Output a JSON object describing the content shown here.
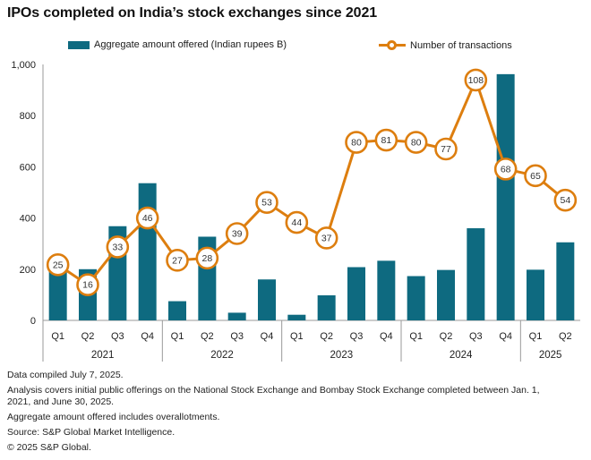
{
  "title": "IPOs completed on India’s stock exchanges since 2021",
  "legend": {
    "bar_label": "Aggregate amount offered (Indian rupees B)",
    "line_label": "Number of transactions"
  },
  "colors": {
    "bar": "#0e6a80",
    "line": "#dd7e0f",
    "axis": "#9a9a9a",
    "text": "#222222",
    "marker_fill": "#ffffff",
    "marker_text": "#333333"
  },
  "chart_data": {
    "type": "bar",
    "subtype": "bar+line combo, dual axis (secondary axis hidden)",
    "grid": false,
    "legend_position": "top",
    "groups": [
      {
        "year": "2021",
        "quarters": [
          "Q1",
          "Q2",
          "Q3",
          "Q4"
        ]
      },
      {
        "year": "2022",
        "quarters": [
          "Q1",
          "Q2",
          "Q3",
          "Q4"
        ]
      },
      {
        "year": "2023",
        "quarters": [
          "Q1",
          "Q2",
          "Q3",
          "Q4"
        ]
      },
      {
        "year": "2024",
        "quarters": [
          "Q1",
          "Q2",
          "Q3",
          "Q4"
        ]
      },
      {
        "year": "2025",
        "quarters": [
          "Q1",
          "Q2"
        ]
      }
    ],
    "series": [
      {
        "name": "Aggregate amount offered (Indian rupees B)",
        "type": "bar",
        "values": [
          193,
          200,
          368,
          536,
          75,
          327,
          30,
          160,
          22,
          98,
          208,
          233,
          173,
          197,
          360,
          962,
          198,
          305
        ]
      },
      {
        "name": "Number of transactions",
        "type": "line",
        "values": [
          25,
          16,
          33,
          46,
          27,
          28,
          39,
          53,
          44,
          37,
          80,
          81,
          80,
          77,
          108,
          68,
          65,
          54
        ]
      }
    ],
    "y_axis": {
      "ticks": [
        "1,000",
        "800",
        "600",
        "400",
        "200",
        "0"
      ],
      "tick_values": [
        1000,
        800,
        600,
        400,
        200,
        0
      ],
      "ylim": [
        0,
        1000
      ]
    },
    "secondary_ylim": [
      0,
      115
    ]
  },
  "footer": {
    "lines": [
      "Data compiled July 7, 2025.",
      "Analysis covers initial public offerings on the National Stock Exchange and Bombay Stock Exchange completed between Jan. 1, 2021, and June 30, 2025.",
      "Aggregate amount offered includes overallotments.",
      "Source: S&P Global Market Intelligence.",
      "© 2025 S&P Global."
    ]
  }
}
